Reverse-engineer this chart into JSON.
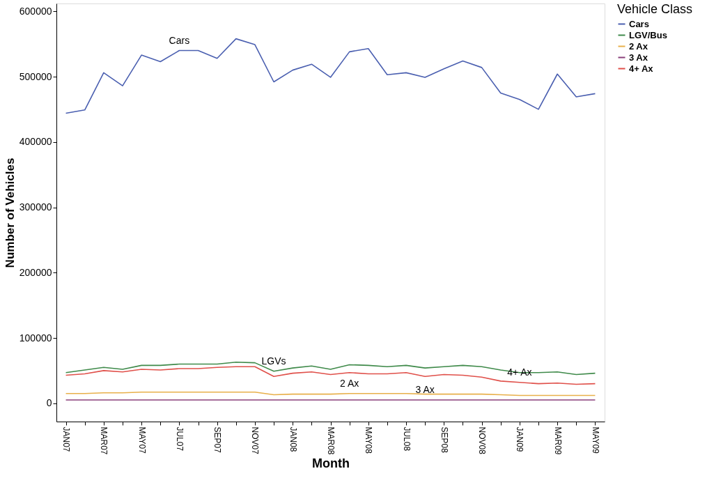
{
  "chart_data": {
    "type": "line",
    "xlabel": "Month",
    "ylabel": "Number of Vehicles",
    "legend_title": "Vehicle Class",
    "legend": "top right",
    "grid": false,
    "marker": "none",
    "line_style": "solid",
    "categories": [
      "JAN07",
      null,
      "MAR07",
      null,
      "MAY07",
      null,
      "JUL07",
      null,
      "SEP07",
      null,
      "NOV07",
      null,
      "JAN08",
      null,
      "MAR08",
      null,
      "MAY08",
      null,
      "JUL08",
      null,
      "SEP08",
      null,
      "NOV08",
      null,
      "JAN09",
      null,
      "MAR09",
      null,
      "MAY09"
    ],
    "ylim": [
      -28000,
      612000
    ],
    "yticks": [
      0,
      100000,
      200000,
      300000,
      400000,
      500000,
      600000
    ],
    "series": [
      {
        "name": "Cars",
        "color": "#4a5fb0",
        "values": [
          444000,
          449000,
          506000,
          486000,
          533000,
          523000,
          540000,
          540000,
          528000,
          558000,
          549000,
          492000,
          510000,
          519000,
          499000,
          538000,
          543000,
          503000,
          506000,
          499000,
          512000,
          524000,
          514000,
          475000,
          465000,
          450000,
          504000,
          469000,
          474000
        ]
      },
      {
        "name": "LGV/Bus",
        "color": "#3f8a4a",
        "values": [
          47000,
          51000,
          55000,
          52000,
          58000,
          58000,
          60000,
          60000,
          60000,
          63000,
          62000,
          49000,
          54000,
          57000,
          52000,
          59000,
          58000,
          56000,
          58000,
          54000,
          56000,
          58000,
          56000,
          51000,
          47000,
          47000,
          48000,
          44000,
          46000
        ]
      },
      {
        "name": "2 Ax",
        "color": "#e8b04a",
        "values": [
          15000,
          15000,
          16000,
          16000,
          17000,
          17000,
          17000,
          17000,
          17000,
          17000,
          17000,
          13000,
          14000,
          14000,
          14000,
          15000,
          15000,
          15000,
          15000,
          14000,
          14000,
          14000,
          14000,
          13000,
          12000,
          12000,
          12000,
          12000,
          12000
        ]
      },
      {
        "name": "3 Ax",
        "color": "#8a3f7a",
        "values": [
          5000,
          5000,
          5000,
          5000,
          5000,
          5000,
          5000,
          5000,
          5000,
          5000,
          5000,
          5000,
          5000,
          5000,
          5000,
          5000,
          5000,
          5000,
          5000,
          5000,
          5000,
          5000,
          5000,
          5000,
          5000,
          5000,
          5000,
          5000,
          5000
        ]
      },
      {
        "name": "4+ Ax",
        "color": "#e0504a",
        "values": [
          43000,
          45000,
          50000,
          48000,
          52000,
          51000,
          53000,
          53000,
          55000,
          56000,
          56000,
          41000,
          46000,
          48000,
          44000,
          47000,
          45000,
          45000,
          47000,
          41000,
          44000,
          43000,
          40000,
          34000,
          32000,
          30000,
          31000,
          29000,
          30000
        ]
      }
    ],
    "annotations": [
      "Cars",
      "LGVs",
      "2 Ax",
      "3 Ax",
      "4+ Ax"
    ]
  }
}
